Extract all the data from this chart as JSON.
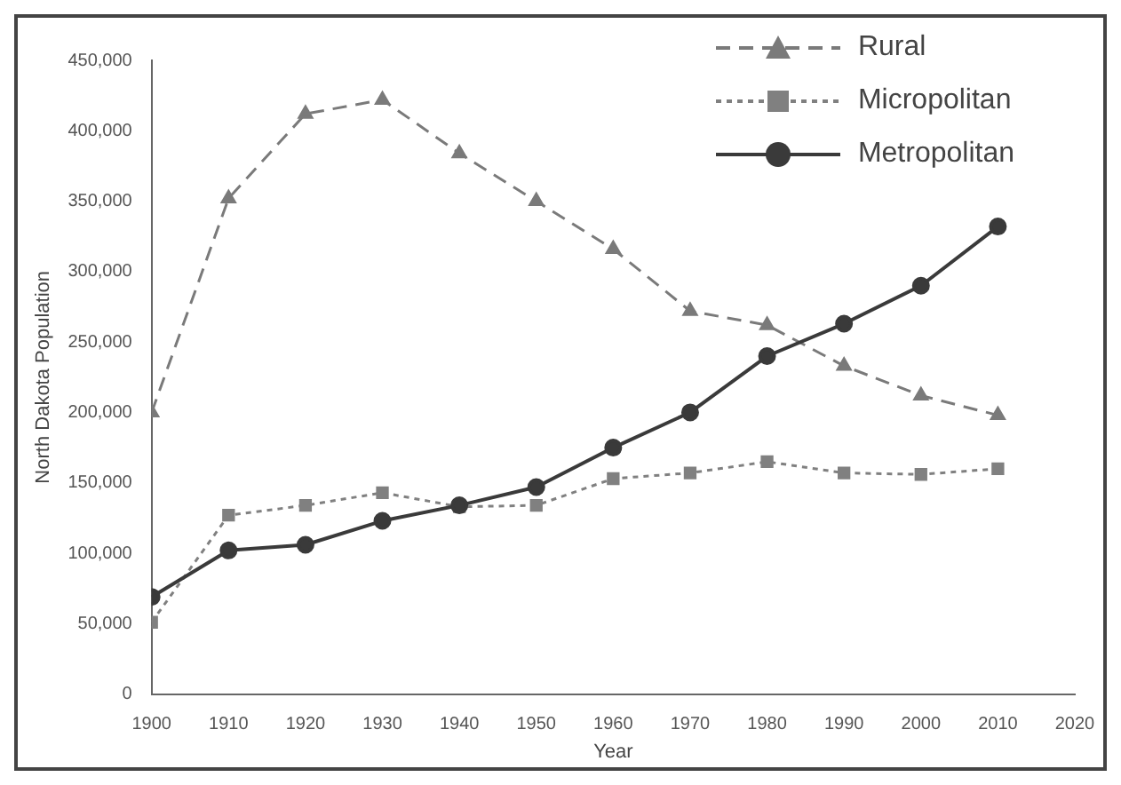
{
  "chart_data": {
    "type": "line",
    "xlabel": "Year",
    "ylabel": "North Dakota Population",
    "x": [
      1900,
      1910,
      1920,
      1930,
      1940,
      1950,
      1960,
      1970,
      1980,
      1990,
      2000,
      2010
    ],
    "xlim": [
      1900,
      2020
    ],
    "xticks": [
      1900,
      1910,
      1920,
      1930,
      1940,
      1950,
      1960,
      1970,
      1980,
      1990,
      2000,
      2010,
      2020
    ],
    "ylim": [
      0,
      450000
    ],
    "yticks": [
      0,
      {
        "value": 50000,
        "label": "50,000"
      },
      {
        "value": 100000,
        "label": "100,000"
      },
      {
        "value": 150000,
        "label": "150,000"
      },
      {
        "value": 200000,
        "label": "200,000"
      },
      {
        "value": 250000,
        "label": "250,000"
      },
      {
        "value": 300000,
        "label": "300,000"
      },
      {
        "value": 350000,
        "label": "350,000"
      },
      {
        "value": 400000,
        "label": "400,000"
      },
      {
        "value": 450000,
        "label": "450,000"
      }
    ],
    "grid": false,
    "legend": "top right",
    "series": [
      {
        "name": "Rural",
        "color": "#7a7a7a",
        "marker": "triangle",
        "line_style": "dashed",
        "values": [
          200000,
          352000,
          412000,
          422000,
          384000,
          350000,
          316000,
          272000,
          262000,
          233000,
          212000,
          198000
        ]
      },
      {
        "name": "Micropolitan",
        "color": "#808080",
        "marker": "square",
        "line_style": "dotted",
        "values": [
          51000,
          127000,
          134000,
          143000,
          133000,
          134000,
          153000,
          157000,
          165000,
          157000,
          156000,
          160000
        ]
      },
      {
        "name": "Metropolitan",
        "color": "#3a3a3a",
        "marker": "circle",
        "line_style": "solid",
        "values": [
          69000,
          102000,
          106000,
          123000,
          134000,
          147000,
          175000,
          200000,
          240000,
          263000,
          290000,
          332000
        ]
      }
    ]
  }
}
